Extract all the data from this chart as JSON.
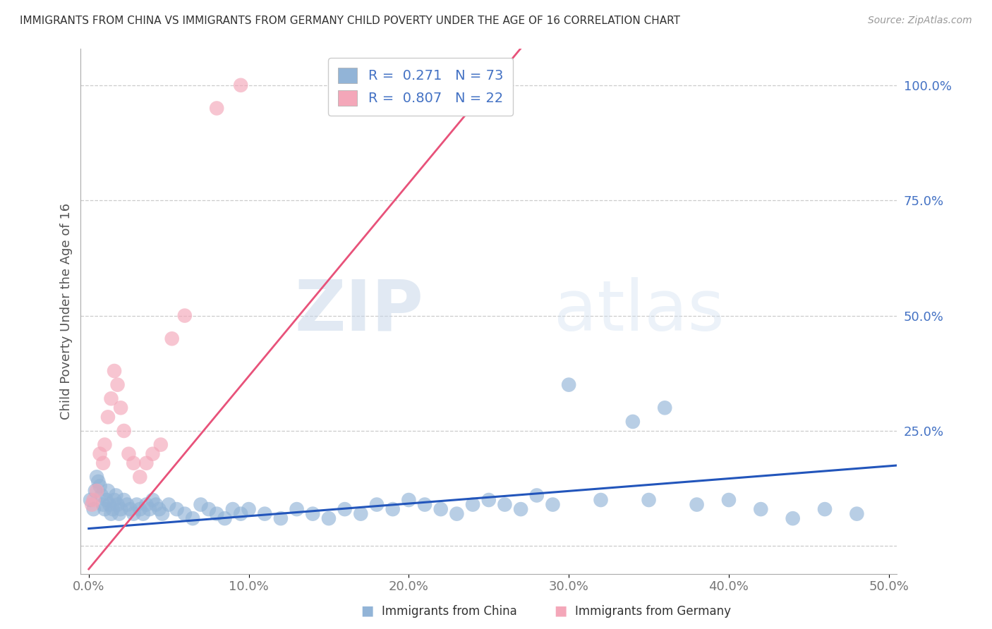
{
  "title": "IMMIGRANTS FROM CHINA VS IMMIGRANTS FROM GERMANY CHILD POVERTY UNDER THE AGE OF 16 CORRELATION CHART",
  "source": "Source: ZipAtlas.com",
  "ylabel": "Child Poverty Under the Age of 16",
  "xlim": [
    -0.005,
    0.505
  ],
  "ylim": [
    -0.06,
    1.08
  ],
  "xticks": [
    0.0,
    0.1,
    0.2,
    0.3,
    0.4,
    0.5
  ],
  "xtick_labels": [
    "0.0%",
    "10.0%",
    "20.0%",
    "30.0%",
    "40.0%",
    "50.0%"
  ],
  "yticks": [
    0.25,
    0.5,
    0.75,
    1.0
  ],
  "ytick_labels": [
    "25.0%",
    "50.0%",
    "75.0%",
    "100.0%"
  ],
  "china_color": "#92b4d7",
  "germany_color": "#f4a7b9",
  "china_line_color": "#2255bb",
  "germany_line_color": "#e8527a",
  "R_china": 0.271,
  "N_china": 73,
  "R_germany": 0.807,
  "N_germany": 22,
  "watermark_zip": "ZIP",
  "watermark_atlas": "atlas",
  "legend_label_china": "Immigrants from China",
  "legend_label_germany": "Immigrants from Germany",
  "china_x": [
    0.001,
    0.003,
    0.004,
    0.005,
    0.006,
    0.007,
    0.008,
    0.009,
    0.01,
    0.011,
    0.012,
    0.013,
    0.014,
    0.015,
    0.016,
    0.017,
    0.018,
    0.019,
    0.02,
    0.022,
    0.024,
    0.026,
    0.028,
    0.03,
    0.032,
    0.034,
    0.036,
    0.038,
    0.04,
    0.042,
    0.044,
    0.046,
    0.05,
    0.055,
    0.06,
    0.065,
    0.07,
    0.075,
    0.08,
    0.085,
    0.09,
    0.095,
    0.1,
    0.11,
    0.12,
    0.13,
    0.14,
    0.15,
    0.16,
    0.17,
    0.18,
    0.19,
    0.2,
    0.21,
    0.22,
    0.23,
    0.24,
    0.25,
    0.26,
    0.27,
    0.28,
    0.29,
    0.3,
    0.32,
    0.34,
    0.35,
    0.36,
    0.38,
    0.4,
    0.42,
    0.44,
    0.46,
    0.48
  ],
  "china_y": [
    0.1,
    0.08,
    0.12,
    0.15,
    0.14,
    0.13,
    0.11,
    0.09,
    0.08,
    0.1,
    0.12,
    0.09,
    0.07,
    0.08,
    0.1,
    0.11,
    0.09,
    0.07,
    0.08,
    0.1,
    0.09,
    0.08,
    0.07,
    0.09,
    0.08,
    0.07,
    0.09,
    0.08,
    0.1,
    0.09,
    0.08,
    0.07,
    0.09,
    0.08,
    0.07,
    0.06,
    0.09,
    0.08,
    0.07,
    0.06,
    0.08,
    0.07,
    0.08,
    0.07,
    0.06,
    0.08,
    0.07,
    0.06,
    0.08,
    0.07,
    0.09,
    0.08,
    0.1,
    0.09,
    0.08,
    0.07,
    0.09,
    0.1,
    0.09,
    0.08,
    0.11,
    0.09,
    0.35,
    0.1,
    0.27,
    0.1,
    0.3,
    0.09,
    0.1,
    0.08,
    0.06,
    0.08,
    0.07
  ],
  "germany_x": [
    0.002,
    0.003,
    0.005,
    0.007,
    0.009,
    0.01,
    0.012,
    0.014,
    0.016,
    0.018,
    0.02,
    0.022,
    0.025,
    0.028,
    0.032,
    0.036,
    0.04,
    0.045,
    0.052,
    0.06,
    0.08,
    0.095
  ],
  "germany_y": [
    0.09,
    0.1,
    0.12,
    0.2,
    0.18,
    0.22,
    0.28,
    0.32,
    0.38,
    0.35,
    0.3,
    0.25,
    0.2,
    0.18,
    0.15,
    0.18,
    0.2,
    0.22,
    0.45,
    0.5,
    0.95,
    1.0
  ],
  "china_line_x0": 0.0,
  "china_line_y0": 0.038,
  "china_line_x1": 0.505,
  "china_line_y1": 0.175,
  "germany_line_x0": 0.0,
  "germany_line_y0": -0.05,
  "germany_line_x1": 0.27,
  "germany_line_y1": 1.08
}
